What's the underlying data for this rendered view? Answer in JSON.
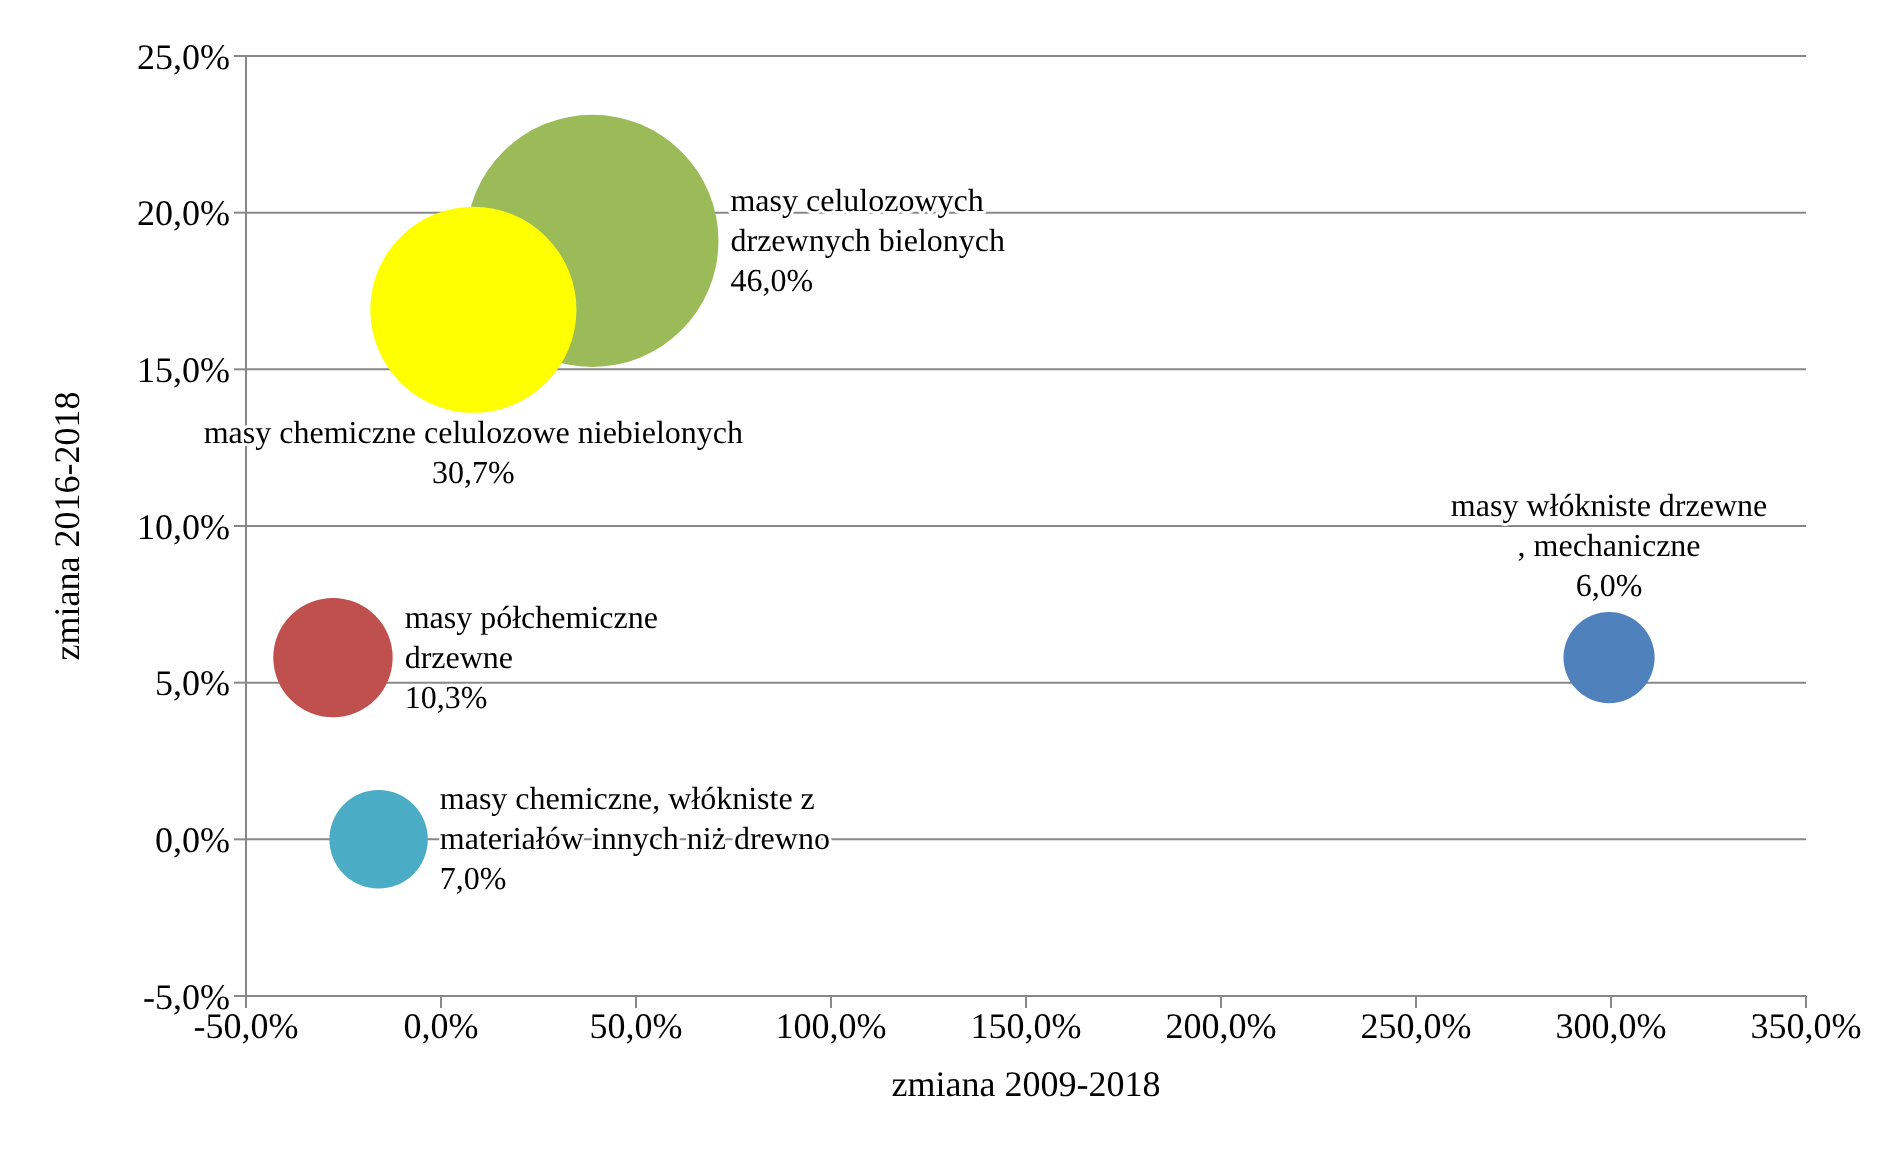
{
  "chart_data": {
    "type": "bubble",
    "xlabel": "zmiana 2009-2018",
    "ylabel": "zmiana 2016-2018",
    "series": [
      {
        "name": "masy celulozowych drzewnych bielonych",
        "color": "#9bbb59",
        "x": [
          38.8
        ],
        "values": [
          19.1
        ],
        "sizes": [
          46.0
        ],
        "value_labels": [
          "46,0%"
        ]
      },
      {
        "name": "masy chemiczne celulozowe niebielonych",
        "color": "#ffff00",
        "x": [
          8.3
        ],
        "values": [
          16.9
        ],
        "sizes": [
          30.7
        ],
        "value_labels": [
          "30,7%"
        ]
      },
      {
        "name": "masy półchemiczne drzewne",
        "color": "#c0504d",
        "x": [
          -27.7
        ],
        "values": [
          5.8
        ],
        "sizes": [
          10.3
        ],
        "value_labels": [
          "10,3%"
        ]
      },
      {
        "name": "masy chemiczne, włókniste z materiałów innych niż drewno",
        "color": "#4bacc6",
        "x": [
          -16
        ],
        "values": [
          0
        ],
        "sizes": [
          7.0
        ],
        "value_labels": [
          "7,0%"
        ]
      },
      {
        "name": "masy włókniste drzewne , mechaniczne",
        "color": "#4f81bd",
        "x": [
          299.5
        ],
        "values": [
          5.8
        ],
        "sizes": [
          6.0
        ],
        "value_labels": [
          "6,0%"
        ]
      }
    ],
    "xlim": [
      -50,
      350
    ],
    "xticks": [
      {
        "value": -50,
        "label": "-50,0%"
      },
      {
        "value": 0,
        "label": "0,0%"
      },
      {
        "value": 50,
        "label": "50,0%"
      },
      {
        "value": 100,
        "label": "100,0%"
      },
      {
        "value": 150,
        "label": "150,0%"
      },
      {
        "value": 200,
        "label": "200,0%"
      },
      {
        "value": 250,
        "label": "250,0%"
      },
      {
        "value": 300,
        "label": "300,0%"
      },
      {
        "value": 350,
        "label": "350,0%"
      }
    ],
    "ylim": [
      -5,
      25
    ],
    "yticks": [
      {
        "value": -5,
        "label": "-5,0%"
      },
      {
        "value": 0,
        "label": "0,0%"
      },
      {
        "value": 5,
        "label": "5,0%"
      },
      {
        "value": 10,
        "label": "10,0%"
      },
      {
        "value": 15,
        "label": "15,0%"
      },
      {
        "value": 20,
        "label": "20,0%"
      },
      {
        "value": 25,
        "label": "25,0%"
      }
    ],
    "grid": "y"
  }
}
